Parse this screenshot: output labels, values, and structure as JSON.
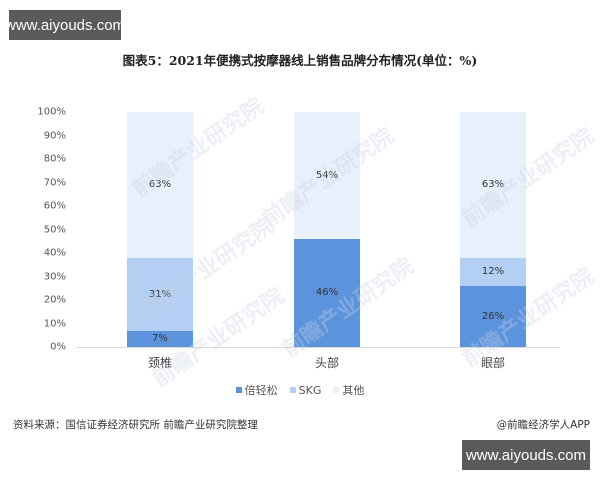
{
  "watermarks": {
    "site_top": "www.aiyouds.com",
    "site_bottom": "www.aiyouds.com",
    "overlay": "前瞻产业研究院"
  },
  "chart_data": {
    "type": "bar",
    "stacked": true,
    "title": "图表5：2021年便携式按摩器线上销售品牌分布情况(单位：%)",
    "xlabel": "",
    "ylabel": "",
    "ylim": [
      0,
      100
    ],
    "yticks": [
      "0%",
      "10%",
      "20%",
      "30%",
      "40%",
      "50%",
      "60%",
      "70%",
      "80%",
      "90%",
      "100%"
    ],
    "categories": [
      "颈椎",
      "头部",
      "眼部"
    ],
    "series": [
      {
        "name": "倍轻松",
        "color": "#5b93dd",
        "values": [
          7,
          46,
          26
        ],
        "labels": [
          "7%",
          "46%",
          "26%"
        ]
      },
      {
        "name": "SKG",
        "color": "#b3cff3",
        "values": [
          31,
          0,
          12
        ],
        "labels": [
          "31%",
          "",
          "12%"
        ]
      },
      {
        "name": "其他",
        "color": "#e8f0fb",
        "values": [
          63,
          54,
          63
        ],
        "labels": [
          "63%",
          "54%",
          "63%"
        ]
      }
    ],
    "legend_position": "bottom",
    "grid": false
  },
  "footer": {
    "source": "资料来源：国信证券经济研究所 前瞻产业研究院整理",
    "credit": "@前瞻经济学人APP"
  }
}
